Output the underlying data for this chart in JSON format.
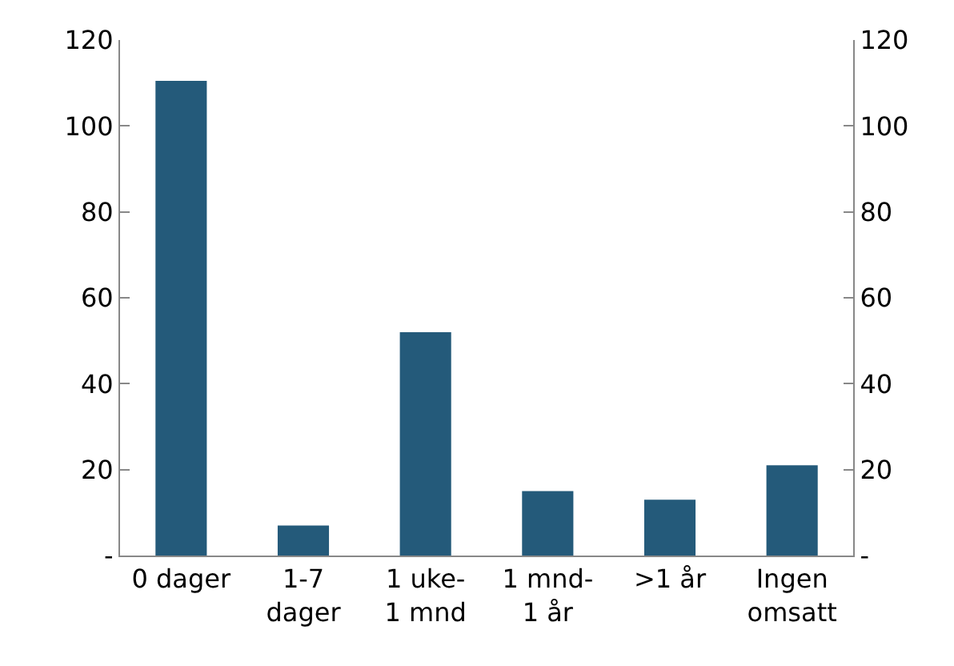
{
  "chart_data": {
    "type": "bar",
    "categories": [
      "0 dager",
      "1-7\ndager",
      "1 uke-\n1 mnd",
      "1 mnd-\n1 år",
      ">1 år",
      "Ingen\nomsatt"
    ],
    "values": [
      110.5,
      7,
      52,
      15,
      13,
      21
    ],
    "color": "#245a7a",
    "ylim": [
      0,
      120
    ],
    "yticks": [
      {
        "value": 0,
        "label": "-"
      },
      20,
      40,
      60,
      80,
      100,
      120
    ],
    "y2lim": [
      0,
      120
    ],
    "y2ticks": [
      {
        "value": 0,
        "label": "-"
      },
      20,
      40,
      60,
      80,
      100,
      120
    ]
  }
}
